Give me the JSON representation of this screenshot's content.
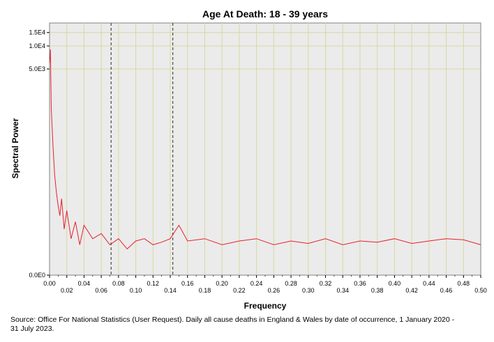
{
  "chart_data": {
    "type": "line",
    "title": "Age At Death: 18 - 39 years",
    "xlabel": "Frequency",
    "ylabel": "Spectral Power",
    "xlim": [
      0,
      0.5
    ],
    "x_ticks_major": [
      "0.00",
      "0.04",
      "0.08",
      "0.12",
      "0.16",
      "0.20",
      "0.24",
      "0.28",
      "0.32",
      "0.36",
      "0.40",
      "0.44",
      "0.48"
    ],
    "x_ticks_minor": [
      "0.02",
      "0.06",
      "0.10",
      "0.14",
      "0.18",
      "0.22",
      "0.26",
      "0.30",
      "0.34",
      "0.38",
      "0.42",
      "0.46",
      "0.50"
    ],
    "y_ticks": [
      "1.5E4",
      "1.0E4",
      "5.0E3",
      "0.0E0"
    ],
    "y_scale": "log",
    "reference_lines_x": [
      0.0714,
      0.1429
    ],
    "reference_line_style": "dashed",
    "grid": true,
    "series": [
      {
        "color": "#e8202a",
        "x": [
          0.0,
          0.001,
          0.002,
          0.004,
          0.006,
          0.008,
          0.01,
          0.012,
          0.014,
          0.017,
          0.02,
          0.025,
          0.03,
          0.035,
          0.04,
          0.05,
          0.06,
          0.07,
          0.08,
          0.09,
          0.1,
          0.11,
          0.12,
          0.13,
          0.14,
          0.15,
          0.16,
          0.18,
          0.2,
          0.22,
          0.24,
          0.26,
          0.28,
          0.3,
          0.32,
          0.34,
          0.36,
          0.38,
          0.4,
          0.42,
          0.44,
          0.46,
          0.48,
          0.5
        ],
        "y": [
          6000,
          9000,
          1500,
          500,
          200,
          120,
          80,
          60,
          100,
          40,
          70,
          30,
          50,
          25,
          45,
          30,
          35,
          25,
          30,
          22,
          28,
          30,
          25,
          27,
          30,
          45,
          28,
          30,
          25,
          28,
          30,
          25,
          28,
          26,
          30,
          25,
          28,
          27,
          30,
          26,
          28,
          30,
          29,
          25
        ]
      }
    ]
  },
  "source_text": "Source: Office For National Statistics (User Request). Daily all cause deaths in England & Wales by date of occurrence, 1 January 2020 - 31 July 2023."
}
